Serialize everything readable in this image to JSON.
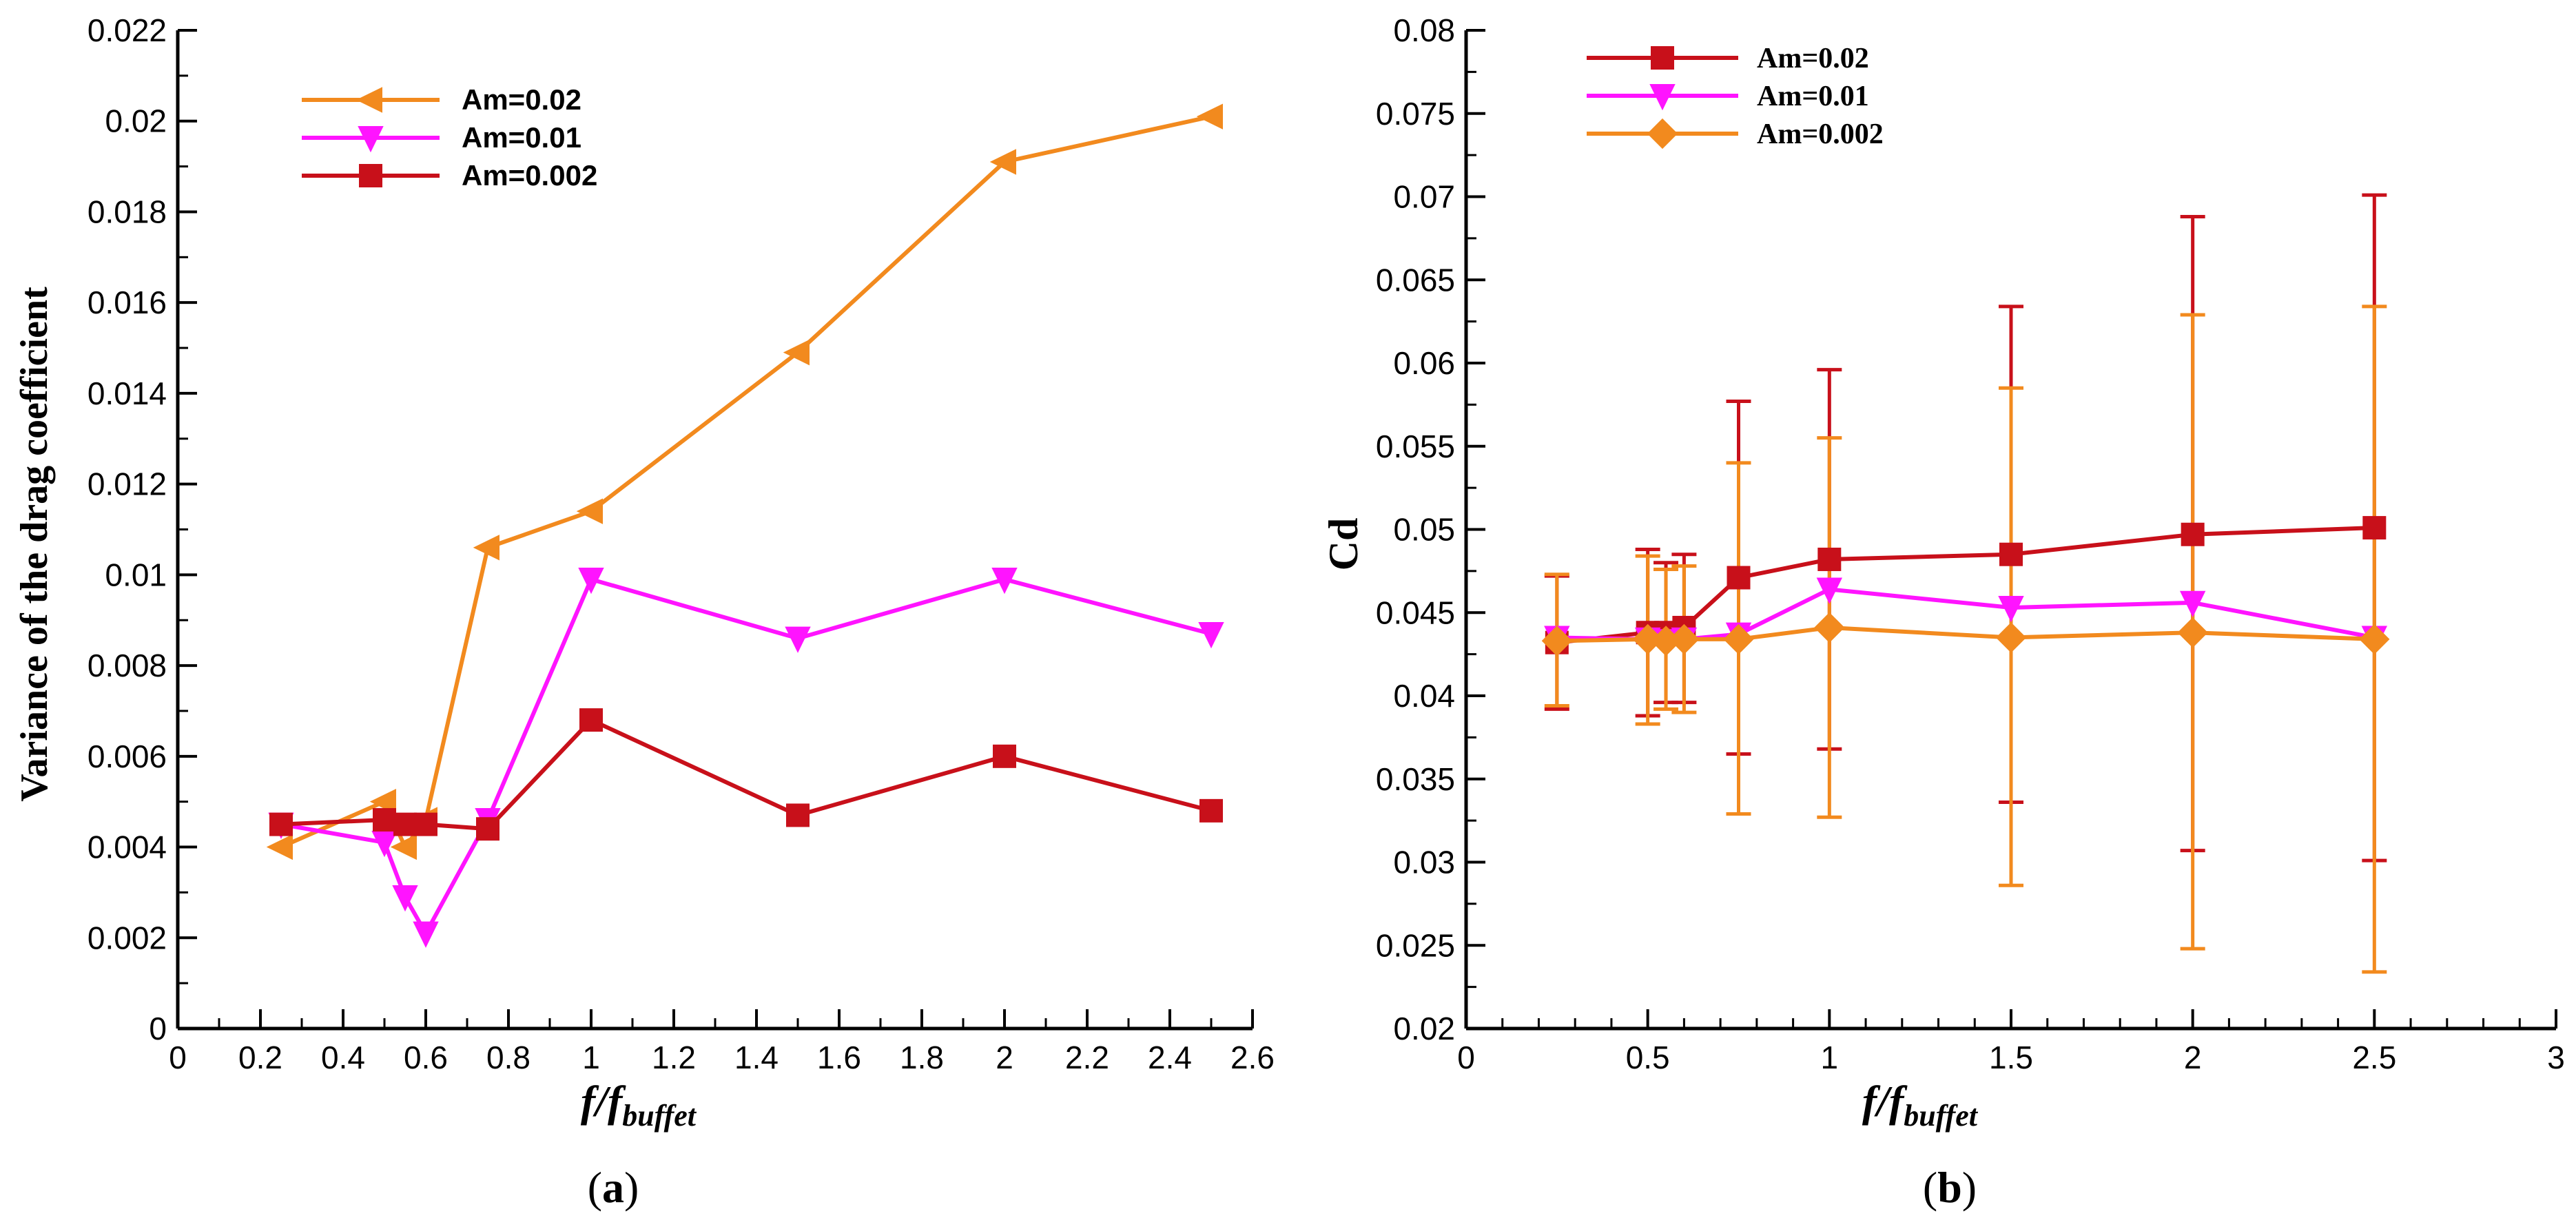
{
  "chart_data": [
    {
      "type": "line",
      "panel_label": "a",
      "title": "",
      "xlabel": "f/f",
      "xlabel_sub": "buffet",
      "ylabel": "Variance of the drag coefficient",
      "xlim": [
        0,
        2.6
      ],
      "ylim": [
        0,
        0.022
      ],
      "xticks": [
        0,
        0.2,
        0.4,
        0.6,
        0.8,
        1,
        1.2,
        1.4,
        1.6,
        1.8,
        2,
        2.2,
        2.4,
        2.6
      ],
      "xtick_labels": [
        "0",
        "0.2",
        "0.4",
        "0.6",
        "0.8",
        "1",
        "1.2",
        "1.4",
        "1.6",
        "1.8",
        "2",
        "2.2",
        "2.4",
        "2.6"
      ],
      "yticks": [
        0,
        0.002,
        0.004,
        0.006,
        0.008,
        0.01,
        0.012,
        0.014,
        0.016,
        0.018,
        0.02,
        0.022
      ],
      "ytick_labels": [
        "0",
        "0.002",
        "0.004",
        "0.006",
        "0.008",
        "0.01",
        "0.012",
        "0.014",
        "0.016",
        "0.018",
        "0.02",
        "0.022"
      ],
      "legend_position": "top-left",
      "series": [
        {
          "name": "Am=0.02",
          "color": "#F28A1E",
          "marker": "triangle-left",
          "x": [
            0.25,
            0.5,
            0.55,
            0.6,
            0.75,
            1,
            1.5,
            2,
            2.5
          ],
          "y": [
            0.004,
            0.005,
            0.004,
            0.0046,
            0.0106,
            0.0114,
            0.0149,
            0.0191,
            0.0201
          ]
        },
        {
          "name": "Am=0.01",
          "color": "#FF14FF",
          "marker": "triangle-down",
          "x": [
            0.25,
            0.5,
            0.55,
            0.6,
            0.75,
            1,
            1.5,
            2,
            2.5
          ],
          "y": [
            0.0045,
            0.0041,
            0.0029,
            0.0021,
            0.0046,
            0.0099,
            0.0086,
            0.0099,
            0.0087
          ]
        },
        {
          "name": "Am=0.002",
          "color": "#C8101A",
          "marker": "square",
          "x": [
            0.25,
            0.5,
            0.55,
            0.6,
            0.75,
            1,
            1.5,
            2,
            2.5
          ],
          "y": [
            0.0045,
            0.0046,
            0.0045,
            0.0045,
            0.0044,
            0.0068,
            0.0047,
            0.006,
            0.0048
          ]
        }
      ]
    },
    {
      "type": "line",
      "panel_label": "b",
      "title": "",
      "xlabel": "f/f",
      "xlabel_sub": "buffet",
      "ylabel": "Cd",
      "xlim": [
        0,
        3
      ],
      "ylim": [
        0.02,
        0.08
      ],
      "xticks": [
        0,
        0.5,
        1,
        1.5,
        2,
        2.5,
        3
      ],
      "xtick_labels": [
        "0",
        "0.5",
        "1",
        "1.5",
        "2",
        "2.5",
        "3"
      ],
      "yticks": [
        0.02,
        0.025,
        0.03,
        0.035,
        0.04,
        0.045,
        0.05,
        0.055,
        0.06,
        0.065,
        0.07,
        0.075,
        0.08
      ],
      "ytick_labels": [
        "0.02",
        "0.025",
        "0.03",
        "0.035",
        "0.04",
        "0.045",
        "0.05",
        "0.055",
        "0.06",
        "0.065",
        "0.07",
        "0.075",
        "0.08"
      ],
      "legend_position": "top-left",
      "series": [
        {
          "name": "Am=0.02",
          "color": "#C8101A",
          "marker": "square",
          "x": [
            0.25,
            0.5,
            0.55,
            0.6,
            0.75,
            1,
            1.5,
            2,
            2.5
          ],
          "y": [
            0.0432,
            0.0438,
            0.0438,
            0.0441,
            0.0471,
            0.0482,
            0.0485,
            0.0497,
            0.0501
          ],
          "err_low": [
            0.0392,
            0.0388,
            0.0396,
            0.0396,
            0.0365,
            0.0368,
            0.0336,
            0.0307,
            0.0301
          ],
          "err_high": [
            0.0472,
            0.0488,
            0.048,
            0.0485,
            0.0577,
            0.0596,
            0.0634,
            0.0688,
            0.0701
          ]
        },
        {
          "name": "Am=0.01",
          "color": "#FF14FF",
          "marker": "triangle-down",
          "x": [
            0.25,
            0.5,
            0.55,
            0.6,
            0.75,
            1,
            1.5,
            2,
            2.5
          ],
          "y": [
            0.0435,
            0.0434,
            0.0433,
            0.0434,
            0.0437,
            0.0464,
            0.0453,
            0.0456,
            0.0435
          ]
        },
        {
          "name": "Am=0.002",
          "color": "#F28A1E",
          "marker": "diamond",
          "x": [
            0.25,
            0.5,
            0.55,
            0.6,
            0.75,
            1,
            1.5,
            2,
            2.5
          ],
          "y": [
            0.0433,
            0.0434,
            0.0433,
            0.0434,
            0.0434,
            0.0441,
            0.0435,
            0.0438,
            0.0434
          ],
          "err_low": [
            0.0394,
            0.0383,
            0.0392,
            0.039,
            0.0329,
            0.0327,
            0.0286,
            0.0248,
            0.0234
          ],
          "err_high": [
            0.0473,
            0.0484,
            0.0476,
            0.0478,
            0.054,
            0.0555,
            0.0585,
            0.0629,
            0.0634
          ]
        }
      ]
    }
  ]
}
